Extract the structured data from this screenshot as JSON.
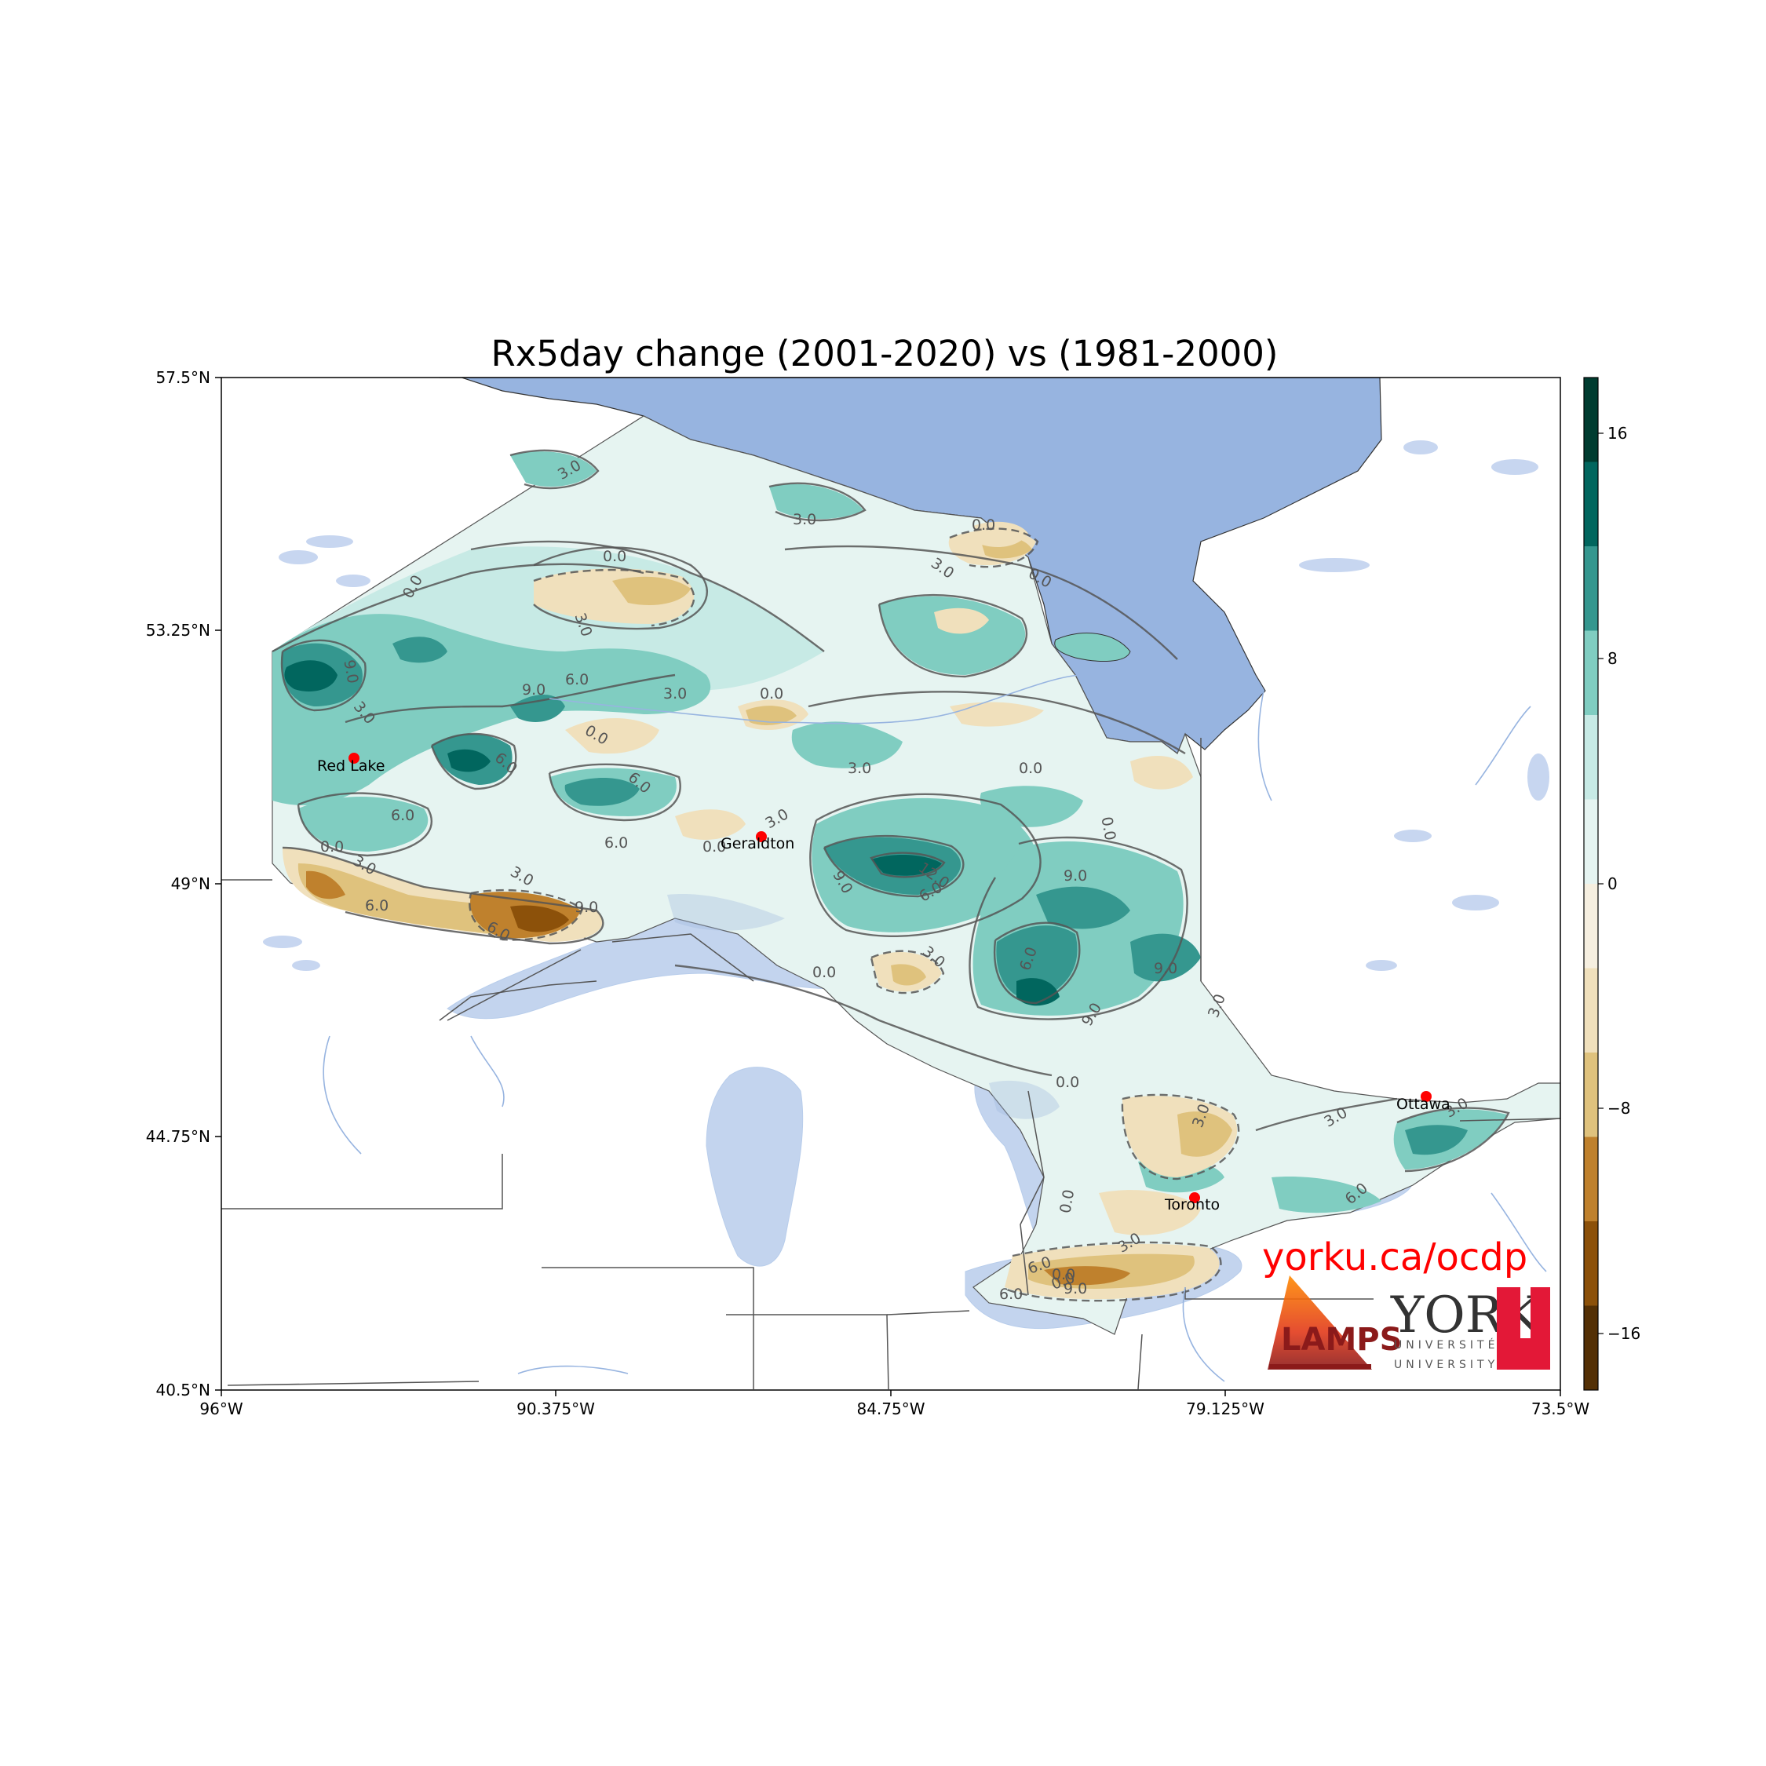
{
  "title": "Rx5day change (2001-2020) vs (1981-2000)",
  "lat_ticks": [
    "57.5°N",
    "53.25°N",
    "49°N",
    "44.75°N",
    "40.5°N"
  ],
  "lon_ticks": [
    "96°W",
    "90.375°W",
    "84.75°W",
    "79.125°W",
    "73.5°W"
  ],
  "colorbar": {
    "ticks": [
      "16",
      "8",
      "0",
      "−8",
      "−16"
    ],
    "colors": [
      "#003c30",
      "#01665e",
      "#35978f",
      "#80cdc1",
      "#c7eae5",
      "#e6f4f1",
      "#f6efe0",
      "#f0e0bc",
      "#dfc27d",
      "#bf812d",
      "#8c510a",
      "#543005"
    ]
  },
  "cities": [
    {
      "name": "Red Lake"
    },
    {
      "name": "Geraldton"
    },
    {
      "name": "Toronto"
    },
    {
      "name": "Ottawa"
    }
  ],
  "contour_labels": [
    "3.0",
    "0.0",
    "3.0",
    "0.0",
    "3.0",
    "0.0",
    "0.0",
    "3.0",
    "9.0",
    "6.0",
    "9.0",
    "3.0",
    "0.0",
    "3.0",
    "0.0",
    "6.0",
    "6.0",
    "3.0",
    "0.0",
    "6.0",
    "0.0",
    "3.0",
    "0.0",
    "0.0",
    "6.0",
    "3.0",
    "9.0",
    "9.0",
    "12.0",
    "6.0",
    "9.0",
    "6.0",
    "6.0",
    "9.0",
    "6.0",
    "9.0",
    "0.0",
    "3.0",
    "3.0",
    "0.0",
    "3.0",
    "0.0",
    "3.0",
    "6.0",
    "3.0",
    "3.0",
    "0.0",
    "3.0",
    "6.0",
    "6.0",
    "9.0",
    "0.0"
  ],
  "branding": {
    "url": "yorku.ca/ocdp",
    "url_color": "#ff0000",
    "york": "YORK",
    "universite": "UNIVERSITÉ",
    "university": "UNIVERSITY",
    "lamps": "LAMPS"
  }
}
